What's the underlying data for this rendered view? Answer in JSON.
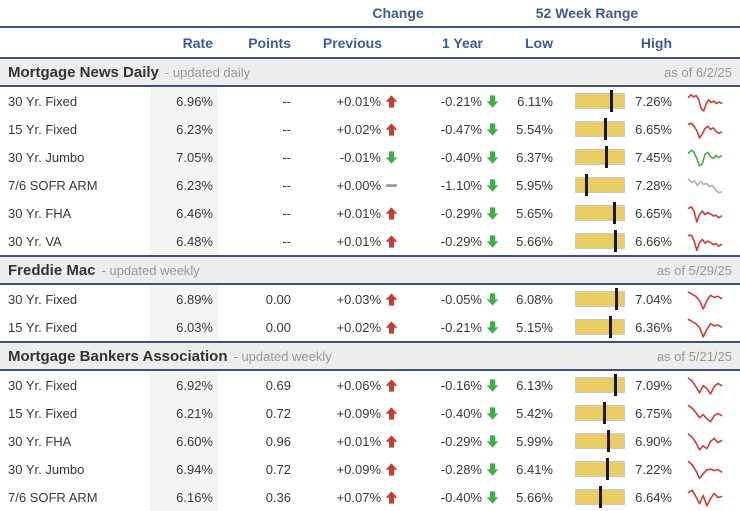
{
  "header": {
    "change_label": "Change",
    "range_label": "52 Week Range",
    "columns": {
      "rate": "Rate",
      "points": "Points",
      "previous": "Previous",
      "one_year": "1 Year",
      "low": "Low",
      "high": "High"
    }
  },
  "colors": {
    "accent_blue": "#3e5c94",
    "border_navy": "#3f517c",
    "section_band_bg": "#ededed",
    "muted_text": "#979797",
    "data_text": "#383838",
    "up_red": "#c73b32",
    "down_green": "#3fae49",
    "neutral_gray": "#9a9a9a",
    "bar_fill": "#e9cc63",
    "bar_border": "#c9c9c9",
    "bar_marker": "#1a1a1a",
    "rate_column_bg": "#f5f5f3",
    "spark_red": "#cd3c35",
    "spark_green": "#4aa84e",
    "spark_gray": "#b0b0b0"
  },
  "sections": [
    {
      "title": "Mortgage News Daily",
      "subtitle": "- updated daily",
      "as_of": "as of 6/2/25",
      "rows": [
        {
          "label": "30 Yr. Fixed",
          "rate": "6.96%",
          "points": "--",
          "previous": {
            "value": "+0.01%",
            "dir": "up"
          },
          "one_year": {
            "value": "-0.21%",
            "dir": "down"
          },
          "low": "6.11%",
          "high": "7.26%",
          "sparkline": {
            "color": "red",
            "points": [
              0.3,
              0.18,
              0.28,
              0.22,
              0.4,
              0.85,
              0.95,
              0.6,
              0.42,
              0.55,
              0.48,
              0.6,
              0.52,
              0.58
            ]
          }
        },
        {
          "label": "15 Yr. Fixed",
          "rate": "6.23%",
          "points": "--",
          "previous": {
            "value": "+0.02%",
            "dir": "up"
          },
          "one_year": {
            "value": "-0.47%",
            "dir": "down"
          },
          "low": "5.54%",
          "high": "6.65%",
          "sparkline": {
            "color": "red",
            "points": [
              0.25,
              0.2,
              0.35,
              0.55,
              0.9,
              0.7,
              0.45,
              0.35,
              0.5,
              0.42,
              0.6,
              0.68,
              0.62
            ]
          }
        },
        {
          "label": "30 Yr. Jumbo",
          "rate": "7.05%",
          "points": "--",
          "previous": {
            "value": "-0.01%",
            "dir": "down"
          },
          "one_year": {
            "value": "-0.40%",
            "dir": "down"
          },
          "low": "6.37%",
          "high": "7.45%",
          "sparkline": {
            "color": "green",
            "points": [
              0.3,
              0.15,
              0.25,
              0.55,
              0.9,
              0.8,
              0.35,
              0.25,
              0.45,
              0.55,
              0.4,
              0.5,
              0.42
            ]
          }
        },
        {
          "label": "7/6 SOFR ARM",
          "rate": "6.23%",
          "points": "--",
          "previous": {
            "value": "+0.00%",
            "dir": "flat"
          },
          "one_year": {
            "value": "-1.10%",
            "dir": "down"
          },
          "low": "5.95%",
          "high": "7.28%",
          "sparkline": {
            "color": "gray",
            "points": [
              0.2,
              0.35,
              0.28,
              0.5,
              0.3,
              0.45,
              0.4,
              0.55,
              0.5,
              0.7,
              0.85,
              0.8
            ]
          }
        },
        {
          "label": "30 Yr. FHA",
          "rate": "6.46%",
          "points": "--",
          "previous": {
            "value": "+0.01%",
            "dir": "up"
          },
          "one_year": {
            "value": "-0.29%",
            "dir": "down"
          },
          "low": "5.65%",
          "high": "6.65%",
          "sparkline": {
            "color": "red",
            "points": [
              0.25,
              0.18,
              0.4,
              0.9,
              0.55,
              0.38,
              0.55,
              0.45,
              0.52,
              0.62,
              0.58,
              0.7,
              0.62
            ]
          }
        },
        {
          "label": "30 Yr. VA",
          "rate": "6.48%",
          "points": "--",
          "previous": {
            "value": "+0.01%",
            "dir": "up"
          },
          "one_year": {
            "value": "-0.29%",
            "dir": "down"
          },
          "low": "5.66%",
          "high": "6.66%",
          "sparkline": {
            "color": "red",
            "points": [
              0.22,
              0.2,
              0.45,
              0.92,
              0.55,
              0.4,
              0.58,
              0.48,
              0.55,
              0.65,
              0.6,
              0.72,
              0.64
            ]
          }
        }
      ]
    },
    {
      "title": "Freddie Mac",
      "subtitle": "- updated weekly",
      "as_of": "as of 5/29/25",
      "rows": [
        {
          "label": "30 Yr. Fixed",
          "rate": "6.89%",
          "points": "0.00",
          "previous": {
            "value": "+0.03%",
            "dir": "up"
          },
          "one_year": {
            "value": "-0.05%",
            "dir": "down"
          },
          "low": "6.08%",
          "high": "7.04%",
          "sparkline": {
            "color": "red",
            "points": [
              0.15,
              0.25,
              0.35,
              0.55,
              0.95,
              0.55,
              0.3,
              0.4,
              0.35,
              0.45
            ]
          }
        },
        {
          "label": "15 Yr. Fixed",
          "rate": "6.03%",
          "points": "0.00",
          "previous": {
            "value": "+0.02%",
            "dir": "up"
          },
          "one_year": {
            "value": "-0.21%",
            "dir": "down"
          },
          "low": "5.15%",
          "high": "6.36%",
          "sparkline": {
            "color": "red",
            "points": [
              0.12,
              0.22,
              0.32,
              0.5,
              0.95,
              0.6,
              0.32,
              0.42,
              0.38,
              0.48
            ]
          }
        }
      ]
    },
    {
      "title": "Mortgage Bankers Association",
      "subtitle": "- updated weekly",
      "as_of": "as of 5/21/25",
      "rows": [
        {
          "label": "30 Yr. Fixed",
          "rate": "6.92%",
          "points": "0.69",
          "previous": {
            "value": "+0.06%",
            "dir": "up"
          },
          "one_year": {
            "value": "-0.16%",
            "dir": "down"
          },
          "low": "6.13%",
          "high": "7.09%",
          "sparkline": {
            "color": "red",
            "points": [
              0.15,
              0.3,
              0.55,
              0.85,
              0.5,
              0.65,
              0.9,
              0.55,
              0.4,
              0.5
            ]
          }
        },
        {
          "label": "15 Yr. Fixed",
          "rate": "6.21%",
          "points": "0.72",
          "previous": {
            "value": "+0.09%",
            "dir": "up"
          },
          "one_year": {
            "value": "-0.40%",
            "dir": "down"
          },
          "low": "5.42%",
          "high": "6.75%",
          "sparkline": {
            "color": "red",
            "points": [
              0.12,
              0.25,
              0.45,
              0.7,
              0.55,
              0.75,
              0.9,
              0.6,
              0.5,
              0.6
            ]
          }
        },
        {
          "label": "30 Yr. FHA",
          "rate": "6.60%",
          "points": "0.96",
          "previous": {
            "value": "+0.01%",
            "dir": "up"
          },
          "one_year": {
            "value": "-0.29%",
            "dir": "down"
          },
          "low": "5.99%",
          "high": "6.90%",
          "sparkline": {
            "color": "red",
            "points": [
              0.15,
              0.3,
              0.55,
              0.9,
              0.7,
              0.85,
              0.5,
              0.35,
              0.55,
              0.45
            ]
          }
        },
        {
          "label": "30 Yr. Jumbo",
          "rate": "6.94%",
          "points": "0.72",
          "previous": {
            "value": "+0.09%",
            "dir": "up"
          },
          "one_year": {
            "value": "-0.28%",
            "dir": "down"
          },
          "low": "6.41%",
          "high": "7.22%",
          "sparkline": {
            "color": "red",
            "points": [
              0.12,
              0.28,
              0.55,
              0.92,
              0.7,
              0.52,
              0.48,
              0.55,
              0.5,
              0.62
            ]
          }
        },
        {
          "label": "7/6 SOFR ARM",
          "rate": "6.16%",
          "points": "0.36",
          "previous": {
            "value": "+0.07%",
            "dir": "up"
          },
          "one_year": {
            "value": "-0.40%",
            "dir": "down"
          },
          "low": "5.66%",
          "high": "6.64%",
          "sparkline": {
            "color": "red",
            "points": [
              0.25,
              0.15,
              0.45,
              0.8,
              0.4,
              0.9,
              0.55,
              0.3,
              0.5,
              0.45
            ]
          }
        }
      ]
    }
  ]
}
